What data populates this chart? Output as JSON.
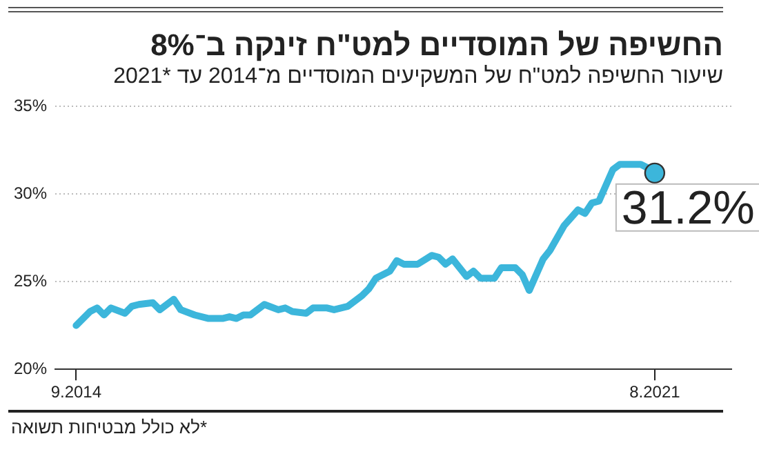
{
  "chart_data": {
    "type": "line",
    "title": "החשיפה של המוסדיים למט\"ח זינקה ב־8%",
    "subtitle": "שיעור החשיפה למט\"ח של המשקיעים המוסדיים מ־2014 עד *2021",
    "x": [
      "2014-09",
      "2014-11",
      "2014-12",
      "2015-01",
      "2015-02",
      "2015-04",
      "2015-05",
      "2015-06",
      "2015-08",
      "2015-09",
      "2015-11",
      "2015-12",
      "2016-02",
      "2016-04",
      "2016-06",
      "2016-07",
      "2016-08",
      "2016-09",
      "2016-10",
      "2016-12",
      "2017-02",
      "2017-03",
      "2017-04",
      "2017-06",
      "2017-07",
      "2017-09",
      "2017-10",
      "2017-12",
      "2018-02",
      "2018-03",
      "2018-04",
      "2018-06",
      "2018-07",
      "2018-08",
      "2018-10",
      "2018-12",
      "2019-01",
      "2019-02",
      "2019-03",
      "2019-05",
      "2019-06",
      "2019-07",
      "2019-09",
      "2019-10",
      "2019-12",
      "2020-01",
      "2020-02",
      "2020-04",
      "2020-05",
      "2020-07",
      "2020-09",
      "2020-10",
      "2020-11",
      "2020-12",
      "2021-02",
      "2021-03",
      "2021-06",
      "2021-07",
      "2021-08"
    ],
    "series": [
      {
        "color": "#3cb6db",
        "values": [
          22.5,
          23.3,
          23.5,
          23.1,
          23.5,
          23.2,
          23.6,
          23.7,
          23.8,
          23.4,
          24.0,
          23.4,
          23.1,
          22.9,
          22.9,
          23.0,
          22.9,
          23.1,
          23.1,
          23.7,
          23.4,
          23.5,
          23.3,
          23.2,
          23.5,
          23.5,
          23.4,
          23.6,
          24.2,
          24.6,
          25.2,
          25.6,
          26.2,
          26.0,
          26.0,
          26.5,
          26.4,
          26.0,
          26.3,
          25.3,
          25.6,
          25.2,
          25.2,
          25.8,
          25.8,
          25.4,
          24.5,
          26.3,
          26.8,
          28.2,
          29.1,
          28.9,
          29.5,
          29.6,
          31.4,
          31.7,
          31.7,
          31.5,
          31.2
        ],
        "value_labels": [
          null,
          null,
          null,
          null,
          null,
          null,
          null,
          null,
          null,
          null,
          null,
          null,
          null,
          null,
          null,
          null,
          null,
          null,
          null,
          null,
          null,
          null,
          null,
          null,
          null,
          null,
          null,
          null,
          null,
          null,
          null,
          null,
          null,
          null,
          null,
          null,
          null,
          null,
          null,
          null,
          null,
          null,
          null,
          null,
          null,
          null,
          null,
          null,
          null,
          null,
          null,
          null,
          null,
          null,
          null,
          null,
          null,
          null,
          "31.2%"
        ]
      }
    ],
    "xlim": [
      "2014-06",
      "2022-07"
    ],
    "xticks": [
      {
        "value": "2014-09",
        "label": "9.2014"
      },
      {
        "value": "2021-08",
        "label": "8.2021"
      }
    ],
    "ylim": [
      20,
      35
    ],
    "yticks": [
      {
        "value": 20,
        "label": "20%"
      },
      {
        "value": 25,
        "label": "25%"
      },
      {
        "value": 30,
        "label": "30%"
      },
      {
        "value": 35,
        "label": "35%"
      }
    ],
    "grid": "y",
    "legend": false,
    "marker": "none",
    "line_style": "solid",
    "annotations": [
      "*לא כולל מבטיחות תשואה"
    ]
  }
}
